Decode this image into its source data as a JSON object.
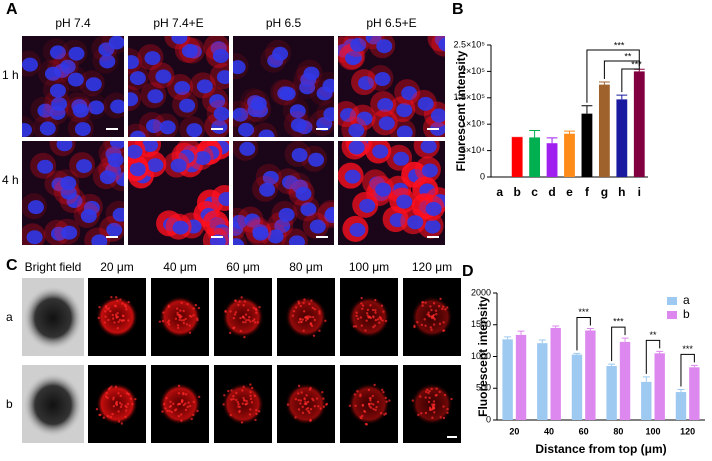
{
  "panel_labels": [
    "A",
    "B",
    "C",
    "D"
  ],
  "panel_a": {
    "columns": [
      "pH 7.4",
      "pH 7.4+E",
      "pH 6.5",
      "pH 6.5+E"
    ],
    "rows": [
      "1 h",
      "4 h"
    ]
  },
  "panel_c": {
    "columns": [
      "Bright field",
      "20 μm",
      "40 μm",
      "60 μm",
      "80 μm",
      "100 μm",
      "120 μm"
    ],
    "rows": [
      "a",
      "b"
    ]
  },
  "chart_data": [
    {
      "type": "bar",
      "ylabel": "Fluorescent intensity",
      "categories": [
        "a",
        "b",
        "c",
        "d",
        "e",
        "f",
        "g",
        "h",
        "i"
      ],
      "values": [
        0,
        74000,
        75000,
        64000,
        82000,
        120000,
        175000,
        147000,
        200000
      ],
      "errors": [
        0,
        1000,
        13000,
        10000,
        5000,
        15000,
        5000,
        8000,
        4000
      ],
      "colors": [
        "#000000",
        "#ff0000",
        "#00b050",
        "#a020f0",
        "#ff8c1a",
        "#000000",
        "#a0622d",
        "#1a1aa0",
        "#800040"
      ],
      "ylim": [
        0,
        250000
      ],
      "yticks": [
        0,
        {
          "value": 50000,
          "label": "5×10⁴"
        },
        {
          "value": 100000,
          "label": "1×10⁵"
        },
        {
          "value": 150000,
          "label": "1.5×10⁵"
        },
        {
          "value": 200000,
          "label": "2×10⁵"
        },
        {
          "value": 250000,
          "label": "2.5×10⁵"
        }
      ],
      "annotations": [
        "***",
        "**",
        "***"
      ]
    },
    {
      "type": "grouped-bar",
      "ylabel": "Fluorescent intensity",
      "xlabel": "Distance from top (μm)",
      "categories": [
        "20",
        "40",
        "60",
        "80",
        "100",
        "120"
      ],
      "series": [
        {
          "name": "a",
          "color": "#9ec9f0",
          "values": [
            1270,
            1210,
            1030,
            850,
            600,
            440
          ],
          "errors": [
            40,
            50,
            20,
            30,
            80,
            40
          ]
        },
        {
          "name": "b",
          "color": "#dd88ee",
          "values": [
            1340,
            1450,
            1410,
            1230,
            1050,
            830
          ],
          "errors": [
            60,
            30,
            30,
            60,
            30,
            30
          ]
        }
      ],
      "ylim": [
        0,
        2000
      ],
      "yticks": [
        0,
        500,
        1000,
        1500,
        2000
      ],
      "annotations": [
        "***",
        "***",
        "**",
        "***"
      ]
    }
  ]
}
